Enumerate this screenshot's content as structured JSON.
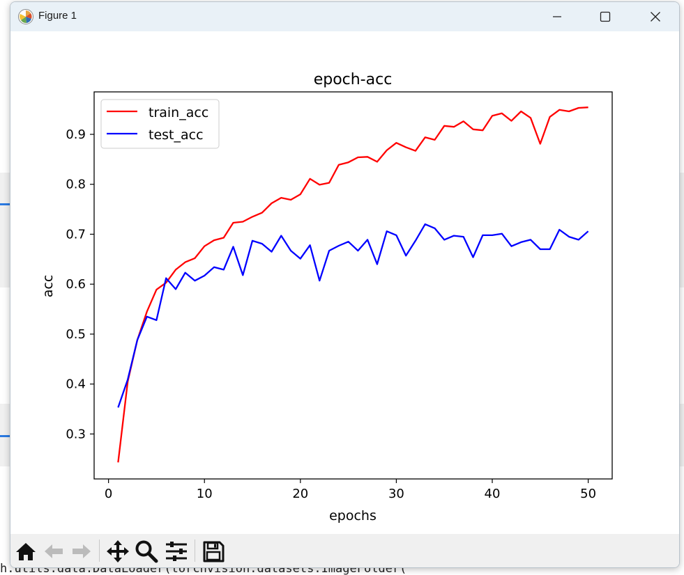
{
  "window": {
    "title": "Figure 1",
    "controls": {
      "minimize": "minimize",
      "maximize": "maximize",
      "close": "close"
    }
  },
  "background_code": {
    "bottom_line": "h.utils.data.DataLoader(torchvision.datasets.ImageFolder("
  },
  "toolbar": {
    "items": [
      "home-icon",
      "back-icon",
      "forward-icon",
      "pan-icon",
      "zoom-icon",
      "configure-subplots-icon",
      "save-icon"
    ]
  },
  "colors": {
    "train": "#ff0000",
    "test": "#0000ff",
    "titlebar": "#e9f1f7",
    "toolbar": "#f0f0f0"
  },
  "chart_data": {
    "type": "line",
    "title": "epoch-acc",
    "xlabel": "epochs",
    "ylabel": "acc",
    "xlim": [
      -1.5,
      52.5
    ],
    "ylim": [
      0.21,
      0.985
    ],
    "xticks": [
      0,
      10,
      20,
      30,
      40,
      50
    ],
    "yticks": [
      0.3,
      0.4,
      0.5,
      0.6,
      0.7,
      0.8,
      0.9
    ],
    "ytick_labels": [
      "0.3",
      "0.4",
      "0.5",
      "0.6",
      "0.7",
      "0.8",
      "0.9"
    ],
    "xtick_labels": [
      "0",
      "10",
      "20",
      "30",
      "40",
      "50"
    ],
    "legend_position": "top-left",
    "grid": false,
    "x": [
      1,
      2,
      3,
      4,
      5,
      6,
      7,
      8,
      9,
      10,
      11,
      12,
      13,
      14,
      15,
      16,
      17,
      18,
      19,
      20,
      21,
      22,
      23,
      24,
      25,
      26,
      27,
      28,
      29,
      30,
      31,
      32,
      33,
      34,
      35,
      36,
      37,
      38,
      39,
      40,
      41,
      42,
      43,
      44,
      45,
      46,
      47,
      48,
      49,
      50
    ],
    "series": [
      {
        "name": "train_acc",
        "color": "#ff0000",
        "values": [
          0.243,
          0.405,
          0.488,
          0.545,
          0.589,
          0.603,
          0.629,
          0.644,
          0.652,
          0.676,
          0.688,
          0.693,
          0.723,
          0.725,
          0.735,
          0.743,
          0.762,
          0.773,
          0.769,
          0.78,
          0.811,
          0.799,
          0.803,
          0.839,
          0.844,
          0.854,
          0.855,
          0.845,
          0.868,
          0.883,
          0.874,
          0.867,
          0.894,
          0.889,
          0.917,
          0.915,
          0.926,
          0.91,
          0.908,
          0.937,
          0.942,
          0.927,
          0.946,
          0.933,
          0.881,
          0.935,
          0.949,
          0.946,
          0.953,
          0.954
        ]
      },
      {
        "name": "test_acc",
        "color": "#0000ff",
        "values": [
          0.353,
          0.409,
          0.488,
          0.535,
          0.528,
          0.612,
          0.59,
          0.623,
          0.607,
          0.617,
          0.634,
          0.629,
          0.675,
          0.618,
          0.687,
          0.681,
          0.665,
          0.697,
          0.667,
          0.651,
          0.678,
          0.607,
          0.667,
          0.677,
          0.685,
          0.667,
          0.689,
          0.64,
          0.706,
          0.698,
          0.657,
          0.687,
          0.72,
          0.712,
          0.689,
          0.697,
          0.695,
          0.654,
          0.698,
          0.698,
          0.701,
          0.676,
          0.684,
          0.689,
          0.67,
          0.67,
          0.709,
          0.695,
          0.689,
          0.706
        ]
      }
    ]
  }
}
